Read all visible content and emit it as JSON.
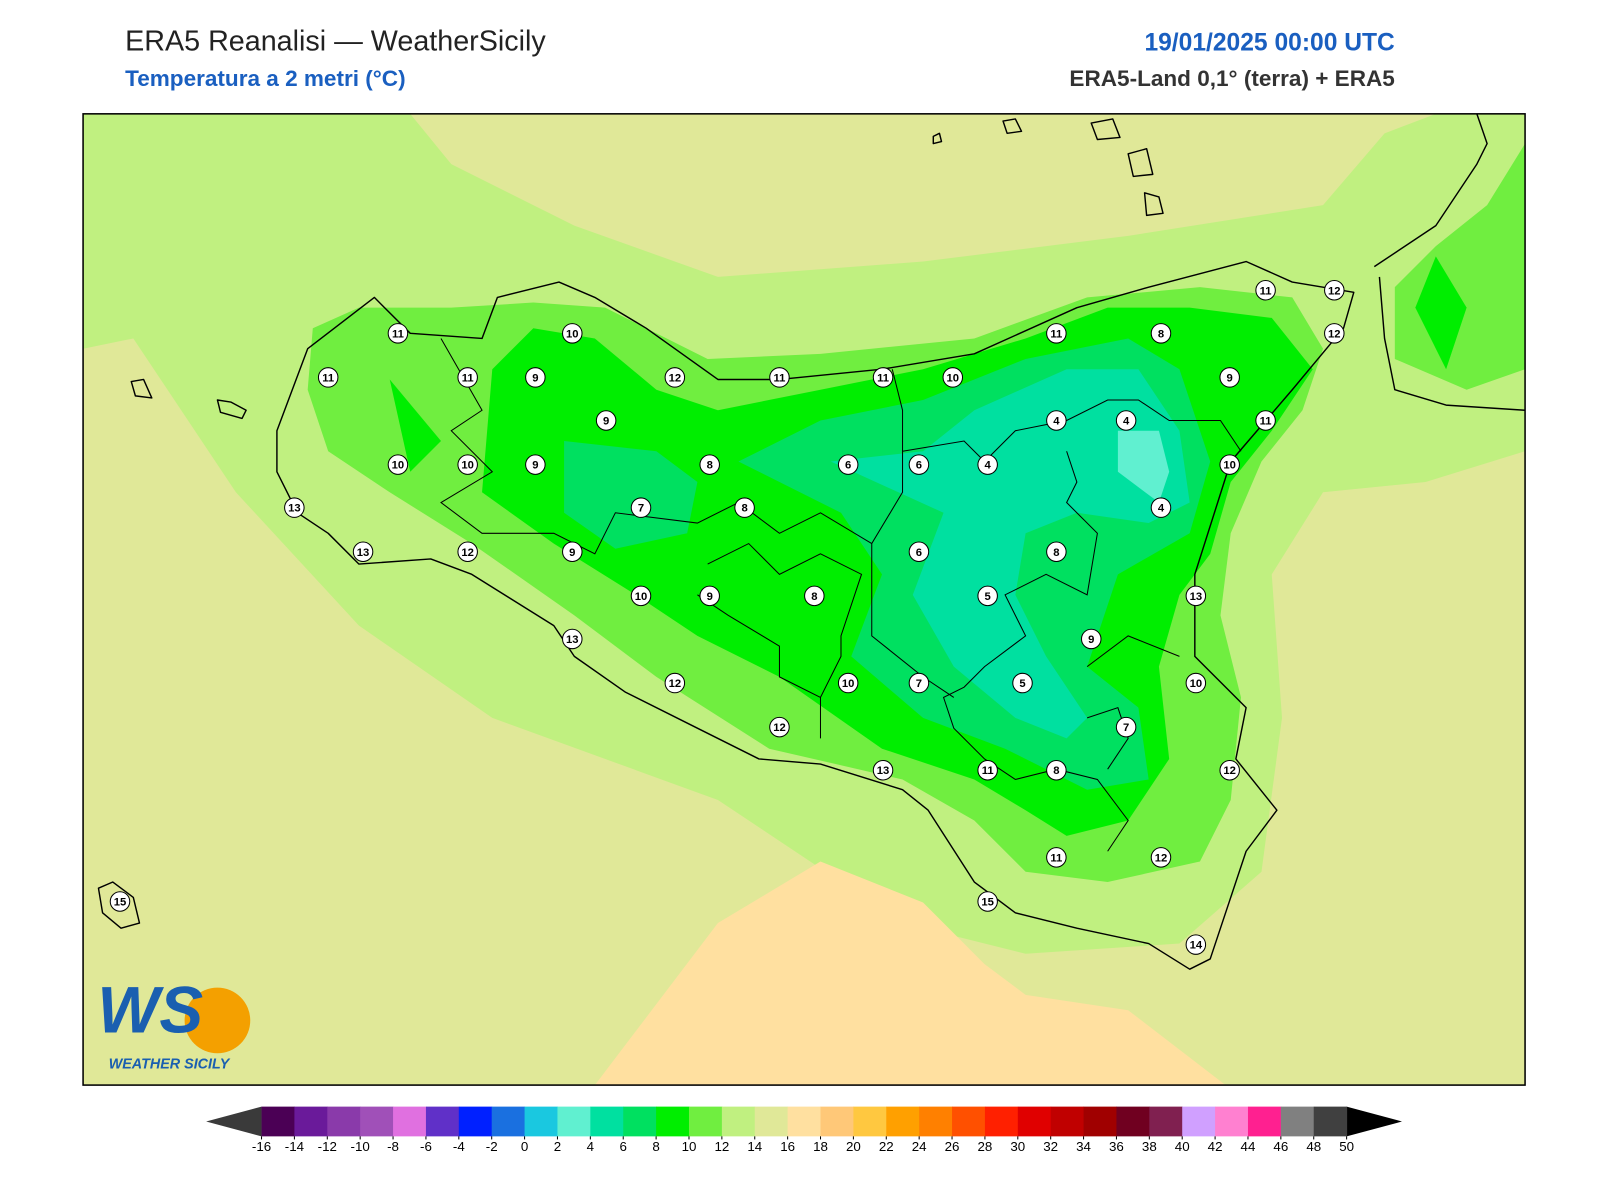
{
  "header": {
    "title": "ERA5 Reanalisi — WeatherSicily",
    "subtitle": "Temperatura a 2 metri (°C)",
    "date": "19/01/2025 00:00 UTC",
    "source": "ERA5-Land 0,1° (terra) + ERA5"
  },
  "stations": [
    11,
    10,
    11,
    11,
    9,
    12,
    11,
    11,
    10,
    11,
    8,
    11,
    12,
    12,
    9,
    9,
    4,
    4,
    11,
    10,
    10,
    9,
    8,
    6,
    6,
    4,
    10,
    13,
    7,
    8,
    4,
    13,
    12,
    9,
    6,
    8,
    10,
    9,
    8,
    5,
    13,
    13,
    9,
    12,
    10,
    7,
    5,
    10,
    12,
    7,
    13,
    11,
    8,
    12,
    11,
    12,
    15,
    15,
    14
  ],
  "logo": {
    "mark": "WS",
    "name": "WEATHER SICILY"
  },
  "colorbar": {
    "ticks": [
      -16,
      -14,
      -12,
      -10,
      -8,
      -6,
      -4,
      -2,
      0,
      2,
      4,
      6,
      8,
      10,
      12,
      14,
      16,
      18,
      20,
      22,
      24,
      26,
      28,
      30,
      32,
      34,
      36,
      38,
      40,
      42,
      44,
      46,
      48,
      50
    ],
    "colors": [
      "#4b0055",
      "#6a1a9a",
      "#8a3aaa",
      "#a050b8",
      "#e070e0",
      "#6030c8",
      "#0020ff",
      "#1a70e0",
      "#1ac8e0",
      "#60f0d0",
      "#00e0a0",
      "#00e060",
      "#00ee00",
      "#70ee40",
      "#c0f080",
      "#e0e898",
      "#ffe0a0",
      "#ffc878",
      "#ffc840",
      "#ffa000",
      "#ff8000",
      "#ff5000",
      "#ff2000",
      "#e00000",
      "#c00000",
      "#a00000",
      "#700020",
      "#802050",
      "#d0a0ff",
      "#ff80d0",
      "#ff2090",
      "#808080",
      "#404040"
    ]
  }
}
